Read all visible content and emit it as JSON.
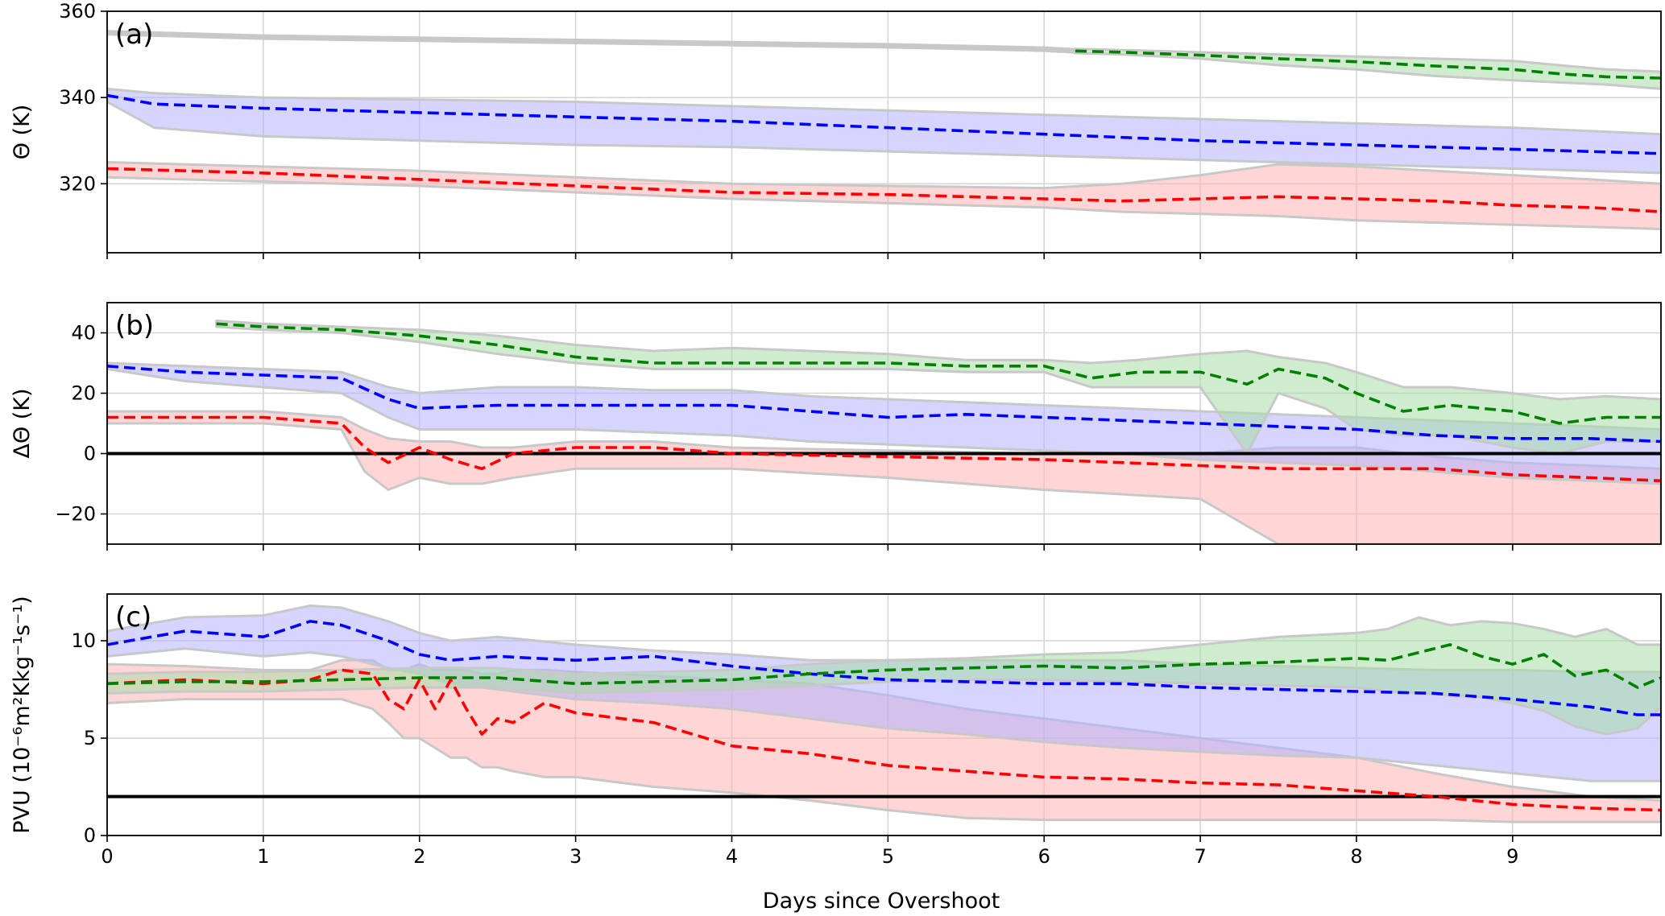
{
  "chart_data": {
    "type": "line",
    "xlabel": "Days since Overshoot",
    "xlim": [
      0,
      9.95
    ],
    "x_ticks": [
      0,
      1,
      2,
      3,
      4,
      5,
      6,
      7,
      8,
      9
    ],
    "grid": true,
    "series_colors": {
      "red": "#ff0000",
      "blue": "#0000ff",
      "green": "#008000"
    },
    "band_colors": {
      "red": "#ffb3b3",
      "blue": "#b3b3ff",
      "green": "#a8dca8",
      "outline": "#c8c8c8"
    },
    "panels": [
      {
        "tag": "(a)",
        "ylabel": "Θ (K)",
        "ylim": [
          304,
          360
        ],
        "y_ticks": [
          320,
          340,
          360
        ],
        "ref_line": null,
        "series": [
          {
            "color": "red",
            "x": [
              0,
              1,
              2,
              3,
              4,
              5,
              6,
              6.5,
              7,
              7.5,
              8,
              8.5,
              9,
              9.5,
              9.95
            ],
            "y": [
              323.5,
              322.5,
              321,
              319.5,
              318,
              317.5,
              316.5,
              316,
              316.5,
              317,
              316.5,
              316,
              315,
              314.5,
              313.5
            ],
            "upper": [
              325,
              324,
              323,
              321.5,
              320,
              319.5,
              319,
              320,
              322,
              324.5,
              324,
              323,
              322,
              321,
              320
            ],
            "lower": [
              321.5,
              320.5,
              319.5,
              318,
              316.5,
              315.5,
              314.5,
              313.5,
              313,
              312.5,
              311.5,
              311,
              310.5,
              310,
              309.5
            ]
          },
          {
            "color": "blue",
            "x": [
              0,
              0.3,
              1,
              2,
              3,
              4,
              5,
              6,
              7,
              8,
              9,
              9.95
            ],
            "y": [
              340.5,
              338.5,
              337.5,
              336.5,
              335.5,
              334.5,
              333,
              331.5,
              330,
              329,
              328,
              327
            ],
            "upper": [
              342,
              341,
              340,
              339.5,
              339,
              338,
              337,
              336,
              335,
              334,
              333,
              331.5
            ],
            "lower": [
              339,
              333,
              331,
              330,
              329,
              328.5,
              327.5,
              326.5,
              325.5,
              324.5,
              323.5,
              322.5
            ]
          },
          {
            "color": "green",
            "x": [
              6.2,
              6.5,
              7,
              7.5,
              8,
              8.5,
              9,
              9.3,
              9.6,
              9.95
            ],
            "y": [
              350.8,
              350.5,
              349.8,
              349,
              348.3,
              347.3,
              346.5,
              345.5,
              344.8,
              344.5
            ],
            "upper": [
              351.3,
              351,
              350.5,
              350,
              349.5,
              349,
              348.5,
              347.5,
              346.5,
              346
            ],
            "lower": [
              350.3,
              350,
              349,
              347.5,
              346.5,
              345,
              344,
              343.5,
              343,
              342
            ]
          }
        ],
        "grey_top": {
          "x": [
            0,
            1,
            2,
            3,
            4,
            5,
            6,
            6.2
          ],
          "y": [
            355,
            354,
            353.5,
            353,
            352.5,
            352,
            351.2,
            350.8
          ]
        }
      },
      {
        "tag": "(b)",
        "ylabel": "ΔΘ (K)",
        "ylim": [
          -30,
          50
        ],
        "y_ticks": [
          -20,
          0,
          20,
          40
        ],
        "ref_line": 0,
        "series": [
          {
            "color": "red",
            "x": [
              0,
              0.5,
              1,
              1.5,
              1.65,
              1.8,
              2,
              2.2,
              2.4,
              2.6,
              3,
              3.5,
              4,
              5,
              6,
              7,
              7.5,
              8,
              8.5,
              9,
              9.5,
              9.95
            ],
            "y": [
              12,
              12,
              12,
              10,
              2,
              -3,
              2,
              -2,
              -5,
              0,
              2,
              2,
              0,
              -1,
              -2,
              -4,
              -5,
              -5,
              -5,
              -7,
              -8,
              -9
            ],
            "upper": [
              14,
              14,
              14,
              12,
              8,
              5,
              4,
              4,
              2,
              2,
              4,
              4,
              2,
              1,
              0,
              0,
              2,
              2,
              -1,
              -3,
              -4,
              -5
            ],
            "lower": [
              10,
              10,
              10,
              8,
              -6,
              -12,
              -8,
              -10,
              -10,
              -8,
              -5,
              -5,
              -5,
              -8,
              -12,
              -15,
              -30,
              -30,
              -30,
              -30,
              -30,
              -30
            ]
          },
          {
            "color": "blue",
            "x": [
              0,
              0.5,
              1,
              1.5,
              1.8,
              2,
              2.5,
              3,
              3.5,
              4,
              4.5,
              5,
              5.5,
              6,
              6.5,
              7,
              7.5,
              8,
              8.5,
              9,
              9.5,
              9.95
            ],
            "y": [
              29,
              27,
              26,
              25,
              18,
              15,
              16,
              16,
              16,
              16,
              14,
              12,
              13,
              12,
              11,
              10,
              9,
              8,
              6,
              5,
              5,
              4
            ],
            "upper": [
              30,
              29,
              28,
              27,
              22,
              20,
              22,
              22,
              21,
              21,
              19,
              18,
              17,
              16,
              15,
              14,
              13,
              12,
              11,
              10,
              9,
              8
            ],
            "lower": [
              28,
              24,
              22,
              20,
              12,
              8,
              8,
              8,
              7,
              6,
              4,
              3,
              2,
              1,
              0,
              -2,
              -3,
              -4,
              -6,
              -8,
              -9,
              -10
            ]
          },
          {
            "color": "green",
            "x": [
              0.7,
              1,
              1.5,
              2,
              2.5,
              3,
              3.5,
              4,
              4.5,
              5,
              5.5,
              6,
              6.3,
              6.6,
              7,
              7.3,
              7.5,
              7.8,
              8,
              8.3,
              8.6,
              9,
              9.3,
              9.6,
              9.95
            ],
            "y": [
              43,
              42,
              41,
              39,
              36,
              32,
              30,
              30,
              30,
              30,
              29,
              29,
              25,
              27,
              27,
              23,
              28,
              25,
              20,
              14,
              16,
              14,
              10,
              12,
              12
            ],
            "upper": [
              44,
              43,
              42,
              41,
              39,
              36,
              34,
              35,
              34,
              33,
              31,
              31,
              30,
              31,
              33,
              34,
              32,
              30,
              27,
              22,
              22,
              20,
              18,
              19,
              18
            ],
            "lower": [
              42,
              41,
              40,
              37,
              33,
              30,
              28,
              28,
              28,
              28,
              27,
              27,
              22,
              22,
              22,
              0,
              20,
              15,
              8,
              6,
              6,
              2,
              0,
              4,
              4
            ]
          }
        ],
        "grey_top": null
      },
      {
        "tag": "(c)",
        "ylabel": "PVU (10⁻⁶m²Kkg⁻¹s⁻¹)",
        "ylim": [
          0,
          12.4
        ],
        "y_ticks": [
          0,
          5,
          10
        ],
        "ref_line": 2,
        "series": [
          {
            "color": "red",
            "x": [
              0,
              0.5,
              1,
              1.3,
              1.5,
              1.7,
              1.8,
              1.9,
              2.0,
              2.1,
              2.2,
              2.3,
              2.4,
              2.5,
              2.6,
              2.8,
              3,
              3.5,
              4,
              4.5,
              5,
              5.5,
              6,
              6.5,
              7,
              7.5,
              8,
              8.5,
              9,
              9.5,
              9.95
            ],
            "y": [
              7.8,
              8,
              7.8,
              8,
              8.5,
              8.3,
              7,
              6.5,
              8,
              6.5,
              8,
              6.5,
              5.2,
              6,
              5.8,
              6.8,
              6.3,
              5.8,
              4.6,
              4.2,
              3.6,
              3.3,
              3,
              2.9,
              2.7,
              2.6,
              2.3,
              2.0,
              1.6,
              1.4,
              1.3
            ],
            "upper": [
              8.8,
              8.7,
              8.5,
              8.5,
              9,
              9,
              8.5,
              8.5,
              8.8,
              8.5,
              8.5,
              8.5,
              8.3,
              8.3,
              8.5,
              8.5,
              8.4,
              8.2,
              8,
              7.8,
              7.2,
              6.5,
              6,
              5.5,
              5,
              4.5,
              4,
              3.2,
              2.5,
              2,
              1.8
            ],
            "lower": [
              6.8,
              7,
              7,
              7,
              7,
              6.5,
              5.8,
              5,
              5,
              4.5,
              4,
              4,
              3.5,
              3.5,
              3.3,
              3,
              3,
              2.5,
              2.2,
              1.8,
              1.3,
              0.9,
              0.8,
              0.8,
              0.8,
              0.8,
              0.8,
              0.8,
              0.7,
              0.7,
              0.7
            ]
          },
          {
            "color": "blue",
            "x": [
              0,
              0.5,
              1,
              1.3,
              1.5,
              1.8,
              2,
              2.2,
              2.5,
              3,
              3.5,
              4,
              4.5,
              5,
              5.5,
              6,
              6.5,
              7,
              7.5,
              8,
              8.5,
              9,
              9.5,
              9.8,
              9.95
            ],
            "y": [
              9.8,
              10.5,
              10.2,
              11,
              10.8,
              10,
              9.3,
              9,
              9.2,
              9,
              9.2,
              8.7,
              8.3,
              8,
              7.9,
              7.8,
              7.8,
              7.6,
              7.5,
              7.4,
              7.3,
              7,
              6.6,
              6.2,
              6.2
            ],
            "upper": [
              10.5,
              11.2,
              11.3,
              11.8,
              11.7,
              11,
              10.4,
              10,
              10.2,
              9.8,
              9.5,
              9.3,
              9,
              9,
              9,
              9,
              9,
              8.8,
              8.7,
              8.6,
              8.5,
              8.5,
              8.4,
              8.4,
              8.4
            ],
            "lower": [
              9.2,
              9.6,
              9.2,
              9.4,
              9.2,
              8.6,
              8.3,
              7.8,
              7.5,
              7,
              6.8,
              6.5,
              6,
              5.5,
              5.2,
              4.8,
              4.5,
              4.3,
              4.1,
              4,
              3.6,
              3.2,
              2.8,
              2.8,
              2.8
            ]
          },
          {
            "color": "green",
            "x": [
              0,
              0.5,
              1,
              1.5,
              2,
              2.5,
              3,
              3.5,
              4,
              4.5,
              5,
              5.5,
              6,
              6.5,
              7,
              7.5,
              8,
              8.2,
              8.4,
              8.6,
              8.8,
              9,
              9.2,
              9.4,
              9.6,
              9.8,
              9.95
            ],
            "y": [
              7.8,
              7.9,
              7.9,
              8,
              8.1,
              8.1,
              7.8,
              7.9,
              8,
              8.3,
              8.5,
              8.6,
              8.7,
              8.6,
              8.8,
              8.9,
              9.1,
              9,
              9.4,
              9.8,
              9.2,
              8.8,
              9.3,
              8.2,
              8.5,
              7.6,
              8.1
            ],
            "upper": [
              8.3,
              8.4,
              8.4,
              8.5,
              8.6,
              8.6,
              8.3,
              8.4,
              8.5,
              8.8,
              9,
              9.1,
              9.3,
              9.4,
              9.8,
              10.2,
              10.4,
              10.6,
              11.2,
              10.8,
              11,
              10.9,
              10.6,
              10.2,
              10.6,
              9.8,
              9.8
            ],
            "lower": [
              7.3,
              7.4,
              7.4,
              7.5,
              7.6,
              7.6,
              7.3,
              7.4,
              7.5,
              7.7,
              7.9,
              8,
              8,
              7.9,
              7.8,
              7.7,
              7.6,
              7.4,
              7.3,
              7.2,
              7.1,
              6.8,
              6.4,
              5.6,
              5.2,
              5.5,
              6.6
            ]
          }
        ],
        "grey_top": null
      }
    ]
  }
}
